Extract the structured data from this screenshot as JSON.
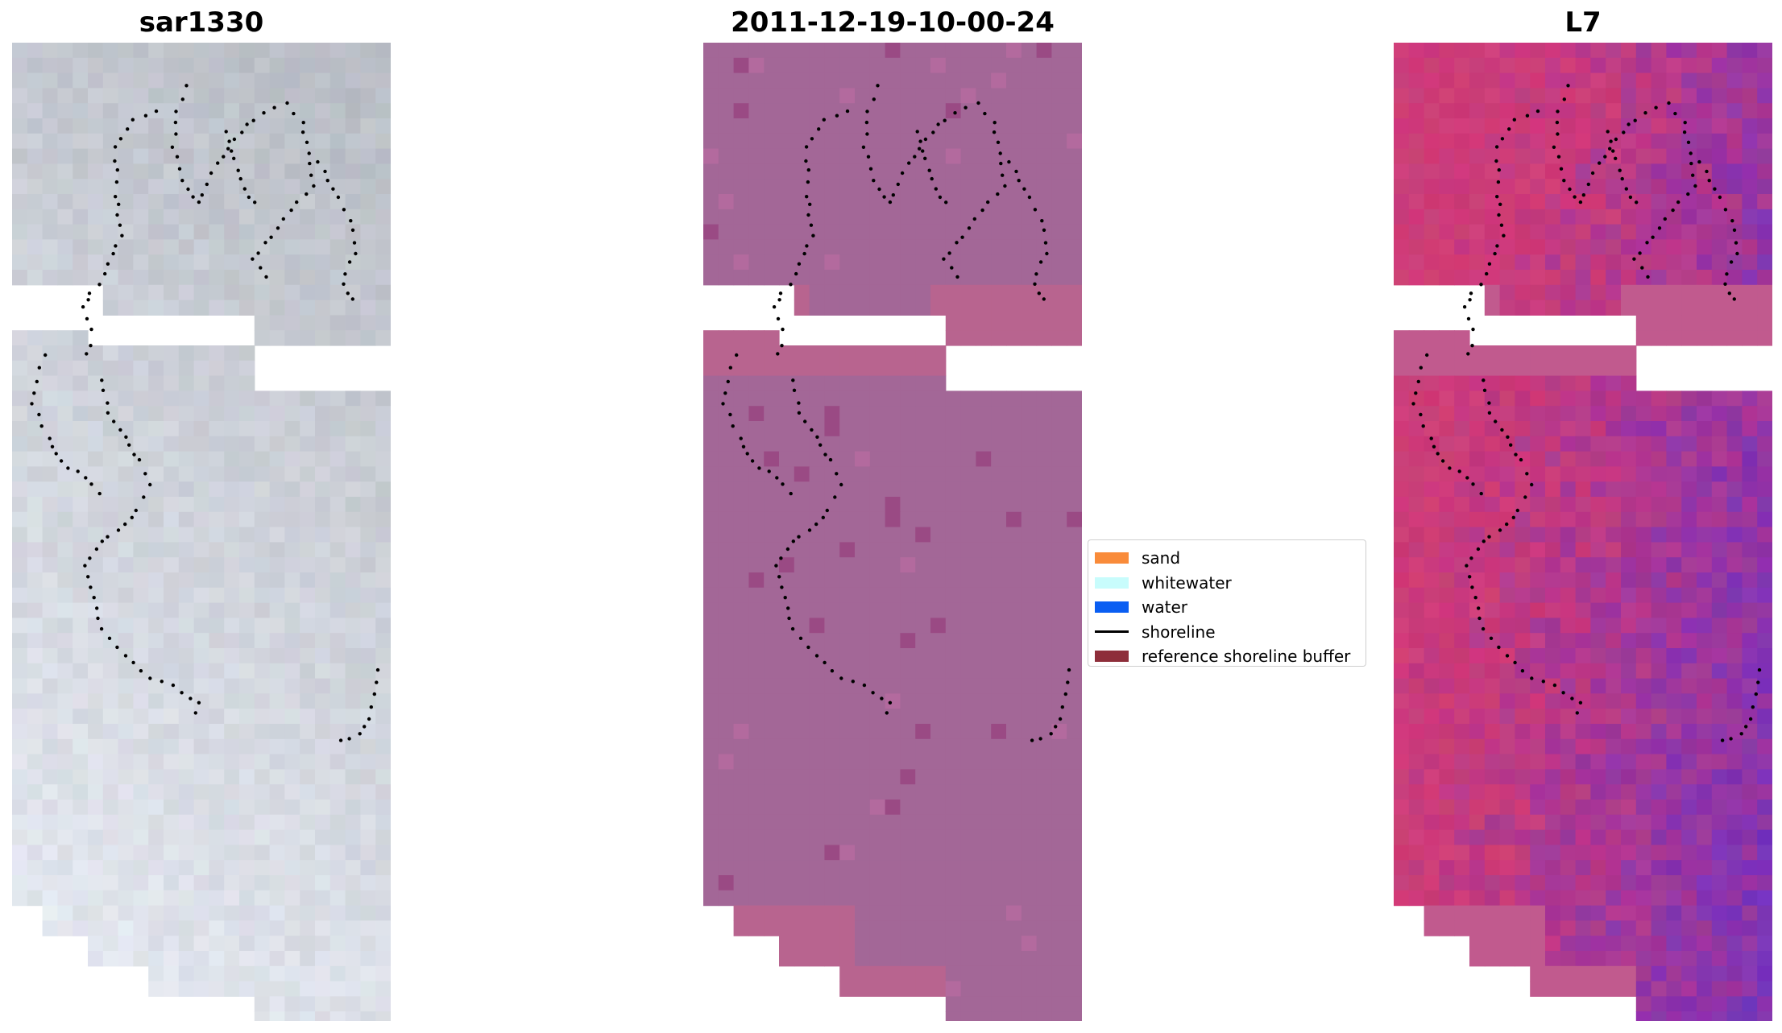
{
  "panels": [
    {
      "id": "rgb",
      "title": "sar1330"
    },
    {
      "id": "class",
      "title": "2011-12-19-10-00-24"
    },
    {
      "id": "mndwi",
      "title": "L7"
    }
  ],
  "legend": {
    "items": [
      {
        "label": "sand",
        "color": "#f98b3a",
        "type": "patch"
      },
      {
        "label": "whitewater",
        "color": "#c8fcfc",
        "type": "patch"
      },
      {
        "label": "water",
        "color": "#0a5ef2",
        "type": "patch"
      },
      {
        "label": "shoreline",
        "color": "#000000",
        "type": "line"
      },
      {
        "label": "reference shoreline buffer",
        "color": "#8e2e3a",
        "type": "patch"
      }
    ]
  },
  "colors": {
    "rgb_base": "#c2c8d0",
    "class_base": "#a36797",
    "class_light": "#b8648f",
    "class_dark": "#9a4a84",
    "mndwi_pink": "#c9457a",
    "mndwi_purple": "#7d3fa6",
    "shoreline": "#000000"
  }
}
